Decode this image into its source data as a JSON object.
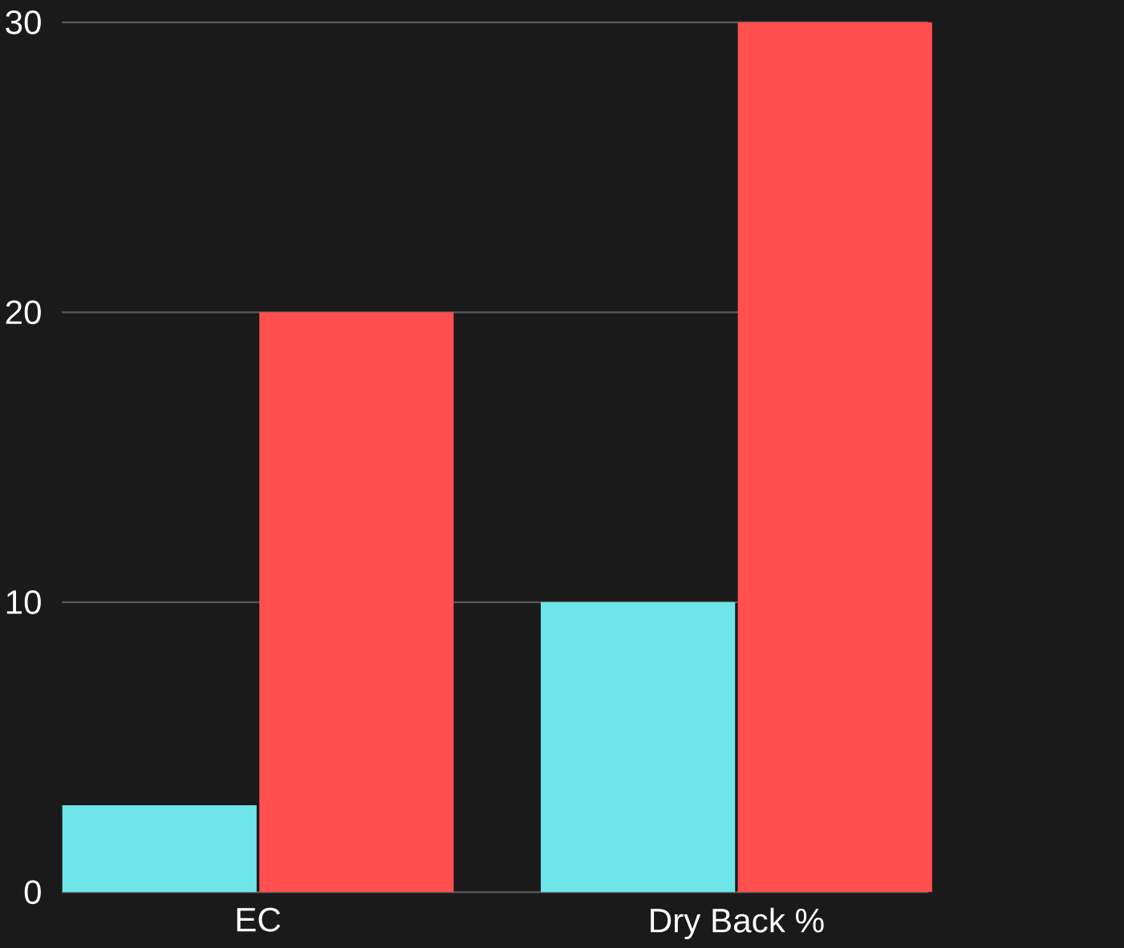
{
  "chart_data": {
    "type": "bar",
    "categories": [
      "EC",
      "Dry Back %"
    ],
    "series": [
      {
        "color": "#6ee6e9",
        "values": [
          3,
          10
        ]
      },
      {
        "color": "#ff4f4f",
        "values": [
          20,
          30
        ]
      }
    ],
    "ylim": [
      0,
      30
    ],
    "yticks": [
      0,
      10,
      20,
      30
    ],
    "grid": "y"
  }
}
